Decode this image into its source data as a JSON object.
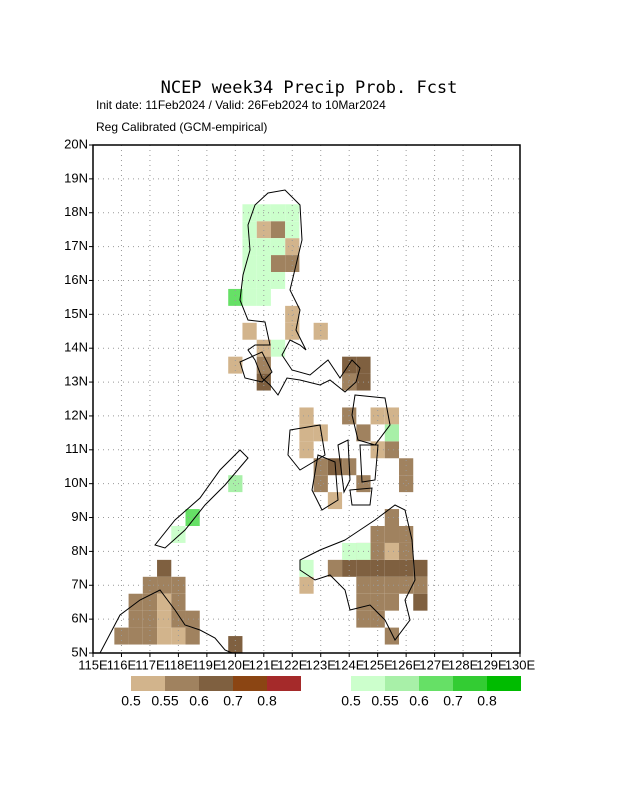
{
  "chart_data": {
    "type": "grid-map",
    "title": "NCEP week34 Precip Prob. Fcst",
    "subtitle": [
      "Init date: 11Feb2024 / Valid: 26Feb2024 to 10Mar2024",
      "Reg Calibrated (GCM-empirical)"
    ],
    "xlim": [
      115,
      130
    ],
    "ylim": [
      5,
      20
    ],
    "xticks": [
      {
        "value": 115,
        "label": "115E"
      },
      {
        "value": 116,
        "label": "116E"
      },
      {
        "value": 117,
        "label": "117E"
      },
      {
        "value": 118,
        "label": "118E"
      },
      {
        "value": 119,
        "label": "119E"
      },
      {
        "value": 120,
        "label": "120E"
      },
      {
        "value": 121,
        "label": "121E"
      },
      {
        "value": 122,
        "label": "122E"
      },
      {
        "value": 123,
        "label": "123E"
      },
      {
        "value": 124,
        "label": "124E"
      },
      {
        "value": 125,
        "label": "125E"
      },
      {
        "value": 126,
        "label": "126E"
      },
      {
        "value": 127,
        "label": "127E"
      },
      {
        "value": 128,
        "label": "128E"
      },
      {
        "value": 129,
        "label": "129E"
      },
      {
        "value": 130,
        "label": "130E"
      }
    ],
    "yticks": [
      {
        "value": 5,
        "label": "5N"
      },
      {
        "value": 6,
        "label": "6N"
      },
      {
        "value": 7,
        "label": "7N"
      },
      {
        "value": 8,
        "label": "8N"
      },
      {
        "value": 9,
        "label": "9N"
      },
      {
        "value": 10,
        "label": "10N"
      },
      {
        "value": 11,
        "label": "11N"
      },
      {
        "value": 12,
        "label": "12N"
      },
      {
        "value": 13,
        "label": "13N"
      },
      {
        "value": 14,
        "label": "14N"
      },
      {
        "value": 15,
        "label": "15N"
      },
      {
        "value": 16,
        "label": "16N"
      },
      {
        "value": 17,
        "label": "17N"
      },
      {
        "value": 18,
        "label": "18N"
      },
      {
        "value": 19,
        "label": "19N"
      },
      {
        "value": 20,
        "label": "20N"
      }
    ],
    "grid": true,
    "series": [
      {
        "levels": [
          0.5,
          0.55,
          0.6,
          0.7,
          0.8
        ],
        "colors": [
          "#d2b48c",
          "#a0825f",
          "#7f6040",
          "#8b4513",
          "#a52a2a"
        ],
        "cells": [
          [
            120.75,
            17.25,
            0.5
          ],
          [
            121.25,
            17.25,
            0.55
          ],
          [
            121.75,
            16.75,
            0.5
          ],
          [
            121.25,
            16.25,
            0.55
          ],
          [
            121.75,
            16.25,
            0.55
          ],
          [
            121.75,
            14.75,
            0.5
          ],
          [
            121.75,
            14.25,
            0.5
          ],
          [
            120.25,
            14.25,
            0.5
          ],
          [
            120.75,
            13.75,
            0.5
          ],
          [
            119.75,
            13.25,
            0.5
          ],
          [
            120.75,
            13.25,
            0.55
          ],
          [
            120.75,
            12.75,
            0.6
          ],
          [
            122.75,
            14.25,
            0.5
          ],
          [
            123.75,
            13.25,
            0.6
          ],
          [
            124.25,
            13.25,
            0.6
          ],
          [
            123.75,
            12.75,
            0.55
          ],
          [
            124.25,
            12.75,
            0.6
          ],
          [
            122.25,
            11.75,
            0.5
          ],
          [
            122.25,
            11.25,
            0.5
          ],
          [
            122.25,
            10.75,
            0.5
          ],
          [
            122.75,
            11.25,
            0.5
          ],
          [
            123.75,
            11.75,
            0.55
          ],
          [
            124.75,
            11.75,
            0.5
          ],
          [
            125.25,
            11.75,
            0.5
          ],
          [
            124.25,
            11.25,
            0.55
          ],
          [
            124.75,
            10.75,
            0.5
          ],
          [
            125.25,
            10.75,
            0.55
          ],
          [
            122.75,
            10.25,
            0.55
          ],
          [
            123.25,
            10.25,
            0.6
          ],
          [
            123.75,
            10.25,
            0.55
          ],
          [
            124.25,
            9.75,
            0.55
          ],
          [
            122.75,
            9.75,
            0.55
          ],
          [
            123.25,
            9.25,
            0.5
          ],
          [
            125.75,
            9.75,
            0.55
          ],
          [
            125.75,
            10.25,
            0.55
          ],
          [
            125.25,
            8.75,
            0.55
          ],
          [
            122.25,
            6.75,
            0.5
          ],
          [
            123.25,
            7.25,
            0.55
          ],
          [
            123.75,
            7.25,
            0.6
          ],
          [
            124.25,
            7.25,
            0.6
          ],
          [
            124.75,
            7.25,
            0.6
          ],
          [
            125.25,
            7.25,
            0.6
          ],
          [
            125.75,
            7.25,
            0.6
          ],
          [
            126.25,
            7.25,
            0.6
          ],
          [
            124.25,
            7.75,
            0.55
          ],
          [
            124.75,
            7.75,
            0.55
          ],
          [
            125.25,
            7.75,
            0.5
          ],
          [
            125.75,
            7.75,
            0.55
          ],
          [
            124.75,
            8.25,
            0.55
          ],
          [
            125.25,
            8.25,
            0.55
          ],
          [
            125.75,
            8.25,
            0.55
          ],
          [
            124.25,
            6.75,
            0.55
          ],
          [
            124.75,
            6.75,
            0.55
          ],
          [
            125.25,
            6.75,
            0.55
          ],
          [
            125.75,
            6.75,
            0.55
          ],
          [
            126.25,
            6.75,
            0.55
          ],
          [
            124.25,
            6.25,
            0.55
          ],
          [
            124.75,
            6.25,
            0.55
          ],
          [
            125.25,
            6.25,
            0.55
          ],
          [
            126.25,
            6.25,
            0.6
          ],
          [
            124.25,
            5.75,
            0.55
          ],
          [
            124.75,
            5.75,
            0.55
          ],
          [
            125.25,
            5.25,
            0.55
          ],
          [
            117.25,
            7.25,
            0.6
          ],
          [
            116.75,
            6.75,
            0.55
          ],
          [
            117.25,
            6.75,
            0.55
          ],
          [
            117.75,
            6.75,
            0.55
          ],
          [
            116.25,
            6.25,
            0.55
          ],
          [
            116.75,
            6.25,
            0.55
          ],
          [
            117.25,
            6.25,
            0.5
          ],
          [
            117.75,
            6.25,
            0.55
          ],
          [
            116.25,
            5.75,
            0.55
          ],
          [
            116.75,
            5.75,
            0.55
          ],
          [
            117.25,
            5.75,
            0.5
          ],
          [
            117.75,
            5.75,
            0.55
          ],
          [
            118.25,
            5.75,
            0.55
          ],
          [
            115.75,
            5.25,
            0.55
          ],
          [
            116.25,
            5.25,
            0.55
          ],
          [
            116.75,
            5.25,
            0.55
          ],
          [
            117.25,
            5.25,
            0.5
          ],
          [
            117.75,
            5.25,
            0.5
          ],
          [
            118.25,
            5.25,
            0.55
          ],
          [
            119.75,
            5.0,
            0.6
          ]
        ]
      },
      {
        "levels": [
          0.5,
          0.55,
          0.6,
          0.7,
          0.8
        ],
        "colors": [
          "#ccffcc",
          "#a8f0a8",
          "#66e066",
          "#33cc33",
          "#00bb00"
        ],
        "cells": [
          [
            120.25,
            17.75,
            0.5
          ],
          [
            120.75,
            17.75,
            0.5
          ],
          [
            121.25,
            17.75,
            0.5
          ],
          [
            121.75,
            17.75,
            0.5
          ],
          [
            120.25,
            17.25,
            0.5
          ],
          [
            121.75,
            17.25,
            0.5
          ],
          [
            120.25,
            16.75,
            0.5
          ],
          [
            120.75,
            16.75,
            0.5
          ],
          [
            121.25,
            16.75,
            0.5
          ],
          [
            120.25,
            16.25,
            0.5
          ],
          [
            120.75,
            16.25,
            0.5
          ],
          [
            120.25,
            15.75,
            0.5
          ],
          [
            120.75,
            15.75,
            0.5
          ],
          [
            121.25,
            15.75,
            0.5
          ],
          [
            119.75,
            15.25,
            0.6
          ],
          [
            120.25,
            15.25,
            0.5
          ],
          [
            120.75,
            15.25,
            0.5
          ],
          [
            121.25,
            13.75,
            0.5
          ],
          [
            125.25,
            11.25,
            0.55
          ],
          [
            123.75,
            7.75,
            0.5
          ],
          [
            124.25,
            7.75,
            0.5
          ],
          [
            122.25,
            7.25,
            0.5
          ],
          [
            119.75,
            9.75,
            0.55
          ],
          [
            118.25,
            8.75,
            0.6
          ],
          [
            117.75,
            8.25,
            0.5
          ]
        ]
      }
    ]
  }
}
